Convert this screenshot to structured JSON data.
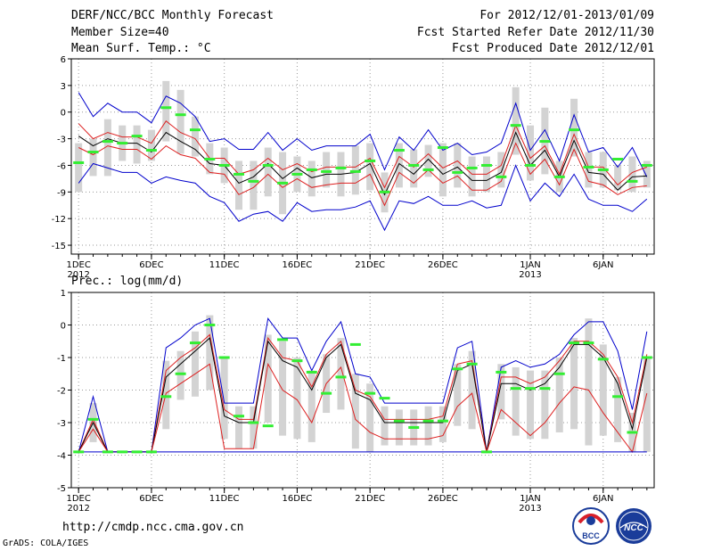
{
  "header": {
    "title": "DERF/NCC/BCC Monthly Forecast",
    "member": "Member Size=40",
    "variable": "Mean Surf. Temp.: °C",
    "period": "For 2012/12/01-2013/01/09",
    "refer": "Fcst Started Refer Date 2012/11/30",
    "produced": "Fcst Produced Date 2012/12/01"
  },
  "footer": {
    "url": "http://cmdp.ncc.cma.gov.cn",
    "credit": "GrADS: COLA/IGES",
    "logo_left": "BCC",
    "logo_right": "NCC"
  },
  "colors": {
    "box": "#d3d3d3",
    "median": "#33ee33",
    "mean": "#000000",
    "spread": "#dd2020",
    "extreme": "#0000cc",
    "grid": "#999999"
  },
  "chart_data": [
    {
      "type": "line",
      "title": "Mean Surf. Temp.: °C",
      "ylabel": "°C",
      "ylim": [
        -16,
        6
      ],
      "yticks": [
        6,
        3,
        0,
        -3,
        -6,
        -9,
        -12,
        -15
      ],
      "xlim": [
        0.5,
        40.5
      ],
      "xticks": [
        {
          "x": 1,
          "label": "1DEC",
          "sub": "2012"
        },
        {
          "x": 6,
          "label": "6DEC"
        },
        {
          "x": 11,
          "label": "11DEC"
        },
        {
          "x": 16,
          "label": "16DEC"
        },
        {
          "x": 21,
          "label": "21DEC"
        },
        {
          "x": 26,
          "label": "26DEC"
        },
        {
          "x": 32,
          "label": "1JAN",
          "sub": "2013"
        },
        {
          "x": 37,
          "label": "6JAN"
        }
      ],
      "days": [
        1,
        2,
        3,
        4,
        5,
        6,
        7,
        8,
        9,
        10,
        11,
        12,
        13,
        14,
        15,
        16,
        17,
        18,
        19,
        20,
        21,
        22,
        23,
        24,
        25,
        26,
        27,
        28,
        29,
        30,
        31,
        32,
        33,
        34,
        35,
        36,
        37,
        38,
        39,
        40
      ],
      "series": [
        {
          "name": "max",
          "values": [
            2.2,
            -0.5,
            1,
            0,
            0,
            -1.2,
            1.8,
            1,
            -0.5,
            -3.3,
            -3,
            -4.2,
            -4.2,
            -2.3,
            -4.3,
            -3,
            -4.3,
            -3.8,
            -3.8,
            -3.8,
            -2.5,
            -6.5,
            -2.8,
            -4.3,
            -2,
            -4.3,
            -3.5,
            -4.8,
            -4.5,
            -3.5,
            1,
            -4.3,
            -2,
            -5.5,
            -0.3,
            -4.5,
            -4,
            -6.2,
            -4,
            -7.3
          ]
        },
        {
          "name": "spread_upper",
          "values": [
            -1.3,
            -3,
            -2.3,
            -2.8,
            -2.8,
            -3.5,
            -1,
            -2.3,
            -3,
            -5.2,
            -5.2,
            -7,
            -6.5,
            -5.2,
            -6.5,
            -5.8,
            -6.7,
            -6.2,
            -6.2,
            -6.2,
            -5.2,
            -8.5,
            -5,
            -6.2,
            -4.7,
            -6.3,
            -5.5,
            -7,
            -7,
            -6,
            -1.5,
            -5.2,
            -3.8,
            -7,
            -2.5,
            -6.2,
            -6.2,
            -8.2,
            -6.8,
            -6.2
          ]
        },
        {
          "name": "mean",
          "values": [
            -2.7,
            -3.8,
            -3,
            -3.5,
            -3.5,
            -4.5,
            -2.3,
            -3.3,
            -4.2,
            -5.8,
            -6,
            -8,
            -7.3,
            -5.8,
            -7.5,
            -6.3,
            -7.4,
            -7,
            -7,
            -6.8,
            -5.8,
            -9.3,
            -5.8,
            -7,
            -5.3,
            -7,
            -6.2,
            -7.7,
            -7.7,
            -6.8,
            -2.3,
            -6,
            -4.3,
            -7.3,
            -3.2,
            -6.8,
            -7,
            -8.8,
            -7.3,
            -7.2
          ]
        },
        {
          "name": "spread_lower",
          "values": [
            -4,
            -4.8,
            -3.8,
            -4.2,
            -4.2,
            -5.3,
            -3.8,
            -4.8,
            -5.2,
            -6.8,
            -7,
            -9.3,
            -8.5,
            -7,
            -8.5,
            -7.5,
            -8.5,
            -8.2,
            -8,
            -8,
            -7,
            -10.5,
            -6.8,
            -8,
            -6.5,
            -8,
            -7.2,
            -8.8,
            -8.8,
            -7.8,
            -3.5,
            -7,
            -5.3,
            -8.2,
            -4.2,
            -7.8,
            -8.2,
            -9.3,
            -8.5,
            -8.3
          ]
        },
        {
          "name": "min",
          "values": [
            -8,
            -5.8,
            -6.3,
            -6.8,
            -6.8,
            -8,
            -7.3,
            -7.7,
            -8,
            -9.5,
            -10.2,
            -12.3,
            -11.5,
            -11.2,
            -12.3,
            -10.2,
            -11.2,
            -11,
            -11,
            -10.7,
            -10,
            -13.3,
            -10,
            -10.3,
            -9.5,
            -10.5,
            -10.5,
            -10,
            -10.8,
            -10.5,
            -6,
            -10,
            -8,
            -9.5,
            -7,
            -9.8,
            -10.5,
            -10.5,
            -11.2,
            -9.8
          ]
        },
        {
          "name": "median",
          "values": [
            -5.7,
            -4.5,
            -3.3,
            -3.5,
            -2.7,
            -4.3,
            0.5,
            -0.3,
            -2,
            -5.3,
            -6,
            -7,
            -7.8,
            -6,
            -8,
            -7,
            -6.5,
            -6.7,
            -6.3,
            -6.7,
            -5.5,
            -9,
            -4.3,
            -6,
            -6.5,
            -4,
            -6.8,
            -6.3,
            -6,
            -7.3,
            -1.5,
            -6,
            -3.3,
            -7.3,
            -2,
            -6.2,
            -6.5,
            -5.3,
            -7.8,
            -6
          ]
        }
      ],
      "boxes": [
        [
          -3.5,
          -9
        ],
        [
          -3,
          -7.2
        ],
        [
          -0.8,
          -7.2
        ],
        [
          -1.5,
          -5.5
        ],
        [
          -1.5,
          -5.8
        ],
        [
          -2,
          -5.5
        ],
        [
          3.5,
          -3.3
        ],
        [
          2.5,
          -4.7
        ],
        [
          -0.5,
          -5
        ],
        [
          -3.5,
          -7
        ],
        [
          -4,
          -8
        ],
        [
          -5.5,
          -11
        ],
        [
          -5.5,
          -11
        ],
        [
          -4,
          -9.5
        ],
        [
          -4.5,
          -11.5
        ],
        [
          -5,
          -9
        ],
        [
          -5.5,
          -9.5
        ],
        [
          -4.5,
          -8.5
        ],
        [
          -4.5,
          -9.5
        ],
        [
          -3.8,
          -9.3
        ],
        [
          -3.5,
          -8.8
        ],
        [
          -6.8,
          -11.3
        ],
        [
          -3.5,
          -8.5
        ],
        [
          -4.2,
          -8.5
        ],
        [
          -3.7,
          -7.3
        ],
        [
          -3.5,
          -9.5
        ],
        [
          -3.5,
          -8.5
        ],
        [
          -5,
          -9.5
        ],
        [
          -5,
          -9
        ],
        [
          -4.5,
          -8.5
        ],
        [
          2.8,
          -4.8
        ],
        [
          -1.5,
          -7.7
        ],
        [
          0.5,
          -7
        ],
        [
          -5.5,
          -9
        ],
        [
          1.5,
          -5
        ],
        [
          -4.5,
          -8.5
        ],
        [
          -4.5,
          -8.5
        ],
        [
          -6,
          -8.8
        ],
        [
          -5,
          -9
        ],
        [
          -5.5,
          -8.5
        ]
      ]
    },
    {
      "type": "line",
      "title": "Prec.: log(mm/d)",
      "ylabel": "log(mm/d)",
      "ylim": [
        -5,
        1
      ],
      "yticks": [
        1,
        0,
        -1,
        -2,
        -3,
        -4,
        -5
      ],
      "xlim": [
        0.5,
        40.5
      ],
      "xticks": [
        {
          "x": 1,
          "label": "1DEC",
          "sub": "2012"
        },
        {
          "x": 6,
          "label": "6DEC"
        },
        {
          "x": 11,
          "label": "11DEC"
        },
        {
          "x": 16,
          "label": "16DEC"
        },
        {
          "x": 21,
          "label": "21DEC"
        },
        {
          "x": 26,
          "label": "26DEC"
        },
        {
          "x": 32,
          "label": "1JAN",
          "sub": "2013"
        },
        {
          "x": 37,
          "label": "6JAN"
        }
      ],
      "days": [
        1,
        2,
        3,
        4,
        5,
        6,
        7,
        8,
        9,
        10,
        11,
        12,
        13,
        14,
        15,
        16,
        17,
        18,
        19,
        20,
        21,
        22,
        23,
        24,
        25,
        26,
        27,
        28,
        29,
        30,
        31,
        32,
        33,
        34,
        35,
        36,
        37,
        38,
        39,
        40
      ],
      "series": [
        {
          "name": "max",
          "values": [
            -3.9,
            -2.2,
            -3.9,
            -3.9,
            -3.9,
            -3.9,
            -0.7,
            -0.4,
            0,
            0.2,
            -2.4,
            -2.4,
            -2.4,
            0.2,
            -0.4,
            -0.4,
            -1.4,
            -0.5,
            0.1,
            -1.5,
            -1.6,
            -2.4,
            -2.4,
            -2.4,
            -2.4,
            -2.4,
            -0.7,
            -0.5,
            -3.9,
            -1.3,
            -1.1,
            -1.3,
            -1.2,
            -0.9,
            -0.3,
            0.1,
            0.1,
            -0.8,
            -2.6,
            -0.2
          ]
        },
        {
          "name": "spread_upper",
          "values": [
            -3.9,
            -2.9,
            -3.9,
            -3.9,
            -3.9,
            -3.9,
            -1.4,
            -1,
            -0.7,
            -0.3,
            -2.6,
            -2.9,
            -2.9,
            -0.4,
            -1,
            -1.1,
            -1.9,
            -0.9,
            -0.5,
            -2,
            -2.2,
            -2.9,
            -2.9,
            -2.9,
            -2.9,
            -2.8,
            -1.2,
            -1.1,
            -3.9,
            -1.6,
            -1.6,
            -1.8,
            -1.6,
            -1.1,
            -0.5,
            -0.5,
            -0.9,
            -1.6,
            -3,
            -0.9
          ]
        },
        {
          "name": "mean",
          "values": [
            -3.9,
            -3,
            -3.9,
            -3.9,
            -3.9,
            -3.9,
            -1.6,
            -1.2,
            -0.8,
            -0.4,
            -2.8,
            -3,
            -3,
            -0.5,
            -1.1,
            -1.3,
            -2,
            -1,
            -0.6,
            -2.1,
            -2.3,
            -3,
            -3,
            -3,
            -3,
            -3,
            -1.4,
            -1.2,
            -3.9,
            -1.8,
            -1.8,
            -2,
            -1.8,
            -1.3,
            -0.6,
            -0.6,
            -1,
            -1.8,
            -3.2,
            -1
          ]
        },
        {
          "name": "spread_lower",
          "values": [
            -3.9,
            -3.2,
            -3.9,
            -3.9,
            -3.9,
            -3.9,
            -2.1,
            -1.8,
            -1.5,
            -1.2,
            -3.8,
            -3.8,
            -3.8,
            -1.2,
            -2,
            -2.3,
            -3,
            -1.8,
            -1.3,
            -2.9,
            -3.3,
            -3.5,
            -3.5,
            -3.5,
            -3.5,
            -3.4,
            -2.5,
            -2.1,
            -3.9,
            -2.6,
            -3,
            -3.4,
            -3,
            -2.4,
            -1.9,
            -2,
            -2.7,
            -3.3,
            -3.9,
            -2.1
          ]
        },
        {
          "name": "min",
          "values": [
            -3.9,
            -3.9,
            -3.9,
            -3.9,
            -3.9,
            -3.9,
            -3.9,
            -3.9,
            -3.9,
            -3.9,
            -3.9,
            -3.9,
            -3.9,
            -3.9,
            -3.9,
            -3.9,
            -3.9,
            -3.9,
            -3.9,
            -3.9,
            -3.9,
            -3.9,
            -3.9,
            -3.9,
            -3.9,
            -3.9,
            -3.9,
            -3.9,
            -3.9,
            -3.9,
            -3.9,
            -3.9,
            -3.9,
            -3.9,
            -3.9,
            -3.9,
            -3.9,
            -3.9,
            -3.9,
            -3.9
          ]
        },
        {
          "name": "median",
          "values": [
            -3.9,
            -2.9,
            -3.9,
            -3.9,
            -3.9,
            -3.9,
            -2.2,
            -1.5,
            -0.55,
            0,
            -1,
            -2.8,
            -3,
            -3.1,
            -0.45,
            -1.1,
            -1.45,
            -2.1,
            -1.6,
            -0.6,
            -2.1,
            -2.25,
            -2.95,
            -3.15,
            -2.95,
            -2.95,
            -1.35,
            -1.2,
            -3.9,
            -1.45,
            -1.95,
            -1.95,
            -1.95,
            -1.5,
            -0.55,
            -0.55,
            -1.05,
            -2.2,
            -3.3,
            -1
          ]
        }
      ],
      "boxes": [
        [
          -3.9,
          -3.9
        ],
        [
          -2.4,
          -3.6
        ],
        [
          -3.9,
          -3.9
        ],
        [
          -3.9,
          -3.9
        ],
        [
          -3.9,
          -3.9
        ],
        [
          -3.9,
          -3.9
        ],
        [
          -1.1,
          -3.2
        ],
        [
          -0.8,
          -2.3
        ],
        [
          -0.2,
          -2.2
        ],
        [
          0.3,
          -2
        ],
        [
          -1,
          -3.5
        ],
        [
          -2.5,
          -3.8
        ],
        [
          -2.5,
          -3.8
        ],
        [
          -0.3,
          -3
        ],
        [
          -0.5,
          -3.4
        ],
        [
          -1,
          -3.5
        ],
        [
          -1.4,
          -3.6
        ],
        [
          -0.9,
          -2.7
        ],
        [
          -0.4,
          -2.6
        ],
        [
          -1.5,
          -3.8
        ],
        [
          -1.8,
          -3.9
        ],
        [
          -2.5,
          -3.7
        ],
        [
          -2.6,
          -3.7
        ],
        [
          -2.6,
          -3.7
        ],
        [
          -2.5,
          -3.7
        ],
        [
          -2.5,
          -3.6
        ],
        [
          -1.2,
          -3.1
        ],
        [
          -0.8,
          -3.2
        ],
        [
          -3.9,
          -3.9
        ],
        [
          -1.2,
          -2.9
        ],
        [
          -1.3,
          -3.4
        ],
        [
          -1.4,
          -3.5
        ],
        [
          -1.4,
          -3.5
        ],
        [
          -1,
          -3.3
        ],
        [
          -0.4,
          -3.2
        ],
        [
          0.2,
          -3.7
        ],
        [
          -0.6,
          -3.4
        ],
        [
          -1.6,
          -3.6
        ],
        [
          -2.7,
          -3.9
        ],
        [
          -1,
          -3.9
        ]
      ]
    }
  ]
}
